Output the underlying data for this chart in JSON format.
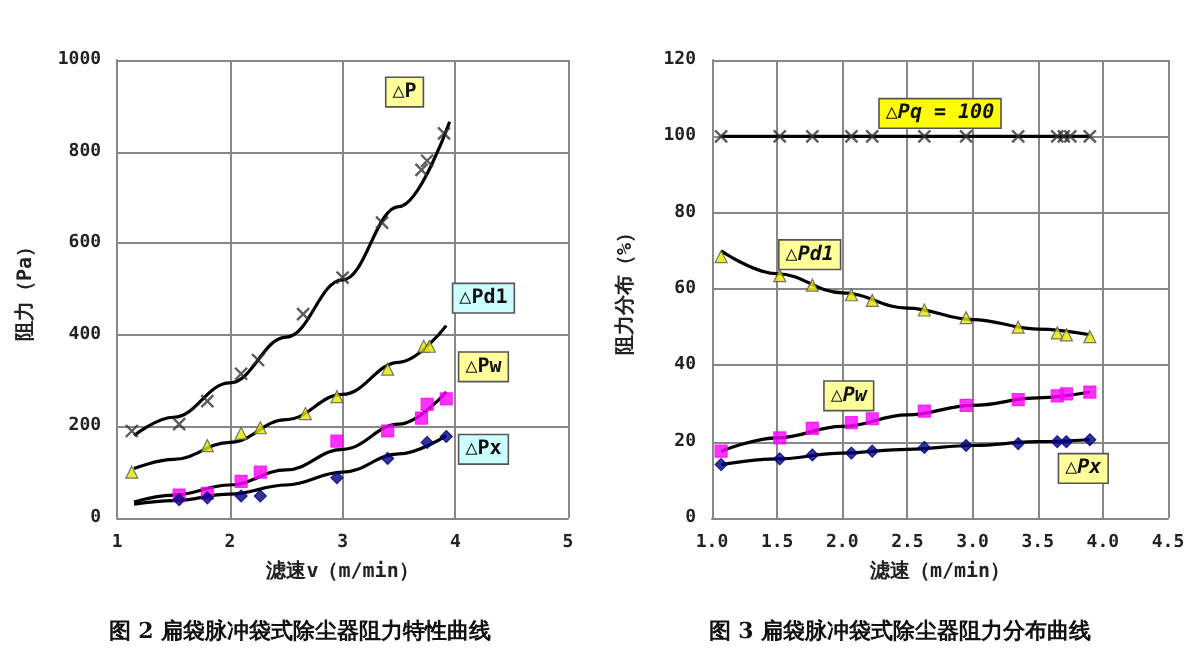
{
  "chart_data": [
    {
      "type": "scatter",
      "xlabel": "滤速v（m/min）",
      "ylabel": "阻力（Pa）",
      "xlim": [
        1,
        5
      ],
      "xticks": [
        1,
        2,
        3,
        4,
        5
      ],
      "ylim": [
        0,
        1000
      ],
      "yticks": [
        0,
        200,
        400,
        600,
        800,
        1000
      ],
      "grid": true,
      "legend": false,
      "annotations": [
        "图 2 扁袋脉冲袋式除尘器阻力特性曲线"
      ],
      "series": [
        {
          "name": "△P",
          "color": "#333333",
          "marker": "cross",
          "x": [
            1.13,
            1.55,
            1.8,
            2.1,
            2.25,
            2.65,
            3.0,
            3.35,
            3.7,
            3.75,
            3.9
          ],
          "values": [
            190,
            205,
            255,
            315,
            345,
            445,
            525,
            645,
            760,
            780,
            840
          ]
        },
        {
          "type": "line",
          "color": "#000000",
          "marker": "none",
          "x": [
            1.15,
            1.5,
            2.0,
            2.5,
            3.0,
            3.5,
            3.95
          ],
          "values": [
            180,
            220,
            295,
            395,
            520,
            680,
            865
          ]
        },
        {
          "name": "△Pd1",
          "color": "#e6e600",
          "marker": "triangle",
          "x": [
            1.13,
            1.8,
            2.1,
            2.27,
            2.67,
            2.95,
            3.4,
            3.72,
            3.77
          ],
          "values": [
            100,
            158,
            185,
            197,
            228,
            265,
            325,
            375,
            375
          ]
        },
        {
          "type": "line",
          "color": "#000000",
          "marker": "none",
          "x": [
            1.15,
            1.5,
            2.0,
            2.5,
            3.0,
            3.5,
            3.92
          ],
          "values": [
            108,
            128,
            165,
            215,
            270,
            340,
            420
          ]
        },
        {
          "name": "△Pw",
          "color": "#ff00ff",
          "marker": "square",
          "x": [
            1.55,
            1.8,
            2.1,
            2.27,
            2.95,
            3.4,
            3.7,
            3.75,
            3.92
          ],
          "values": [
            50,
            54,
            80,
            100,
            168,
            190,
            218,
            248,
            260
          ]
        },
        {
          "type": "line",
          "color": "#000000",
          "marker": "none",
          "x": [
            1.15,
            1.5,
            2.0,
            2.5,
            3.0,
            3.5,
            3.92
          ],
          "values": [
            35,
            50,
            72,
            105,
            150,
            205,
            275
          ]
        },
        {
          "name": "△Px",
          "color": "#000080",
          "marker": "diamond",
          "x": [
            1.55,
            1.8,
            2.1,
            2.27,
            2.95,
            3.4,
            3.75,
            3.92
          ],
          "values": [
            40,
            44,
            48,
            48,
            88,
            130,
            165,
            178
          ]
        },
        {
          "type": "line",
          "color": "#000000",
          "marker": "none",
          "x": [
            1.15,
            1.5,
            2.0,
            2.5,
            3.0,
            3.5,
            3.92
          ],
          "values": [
            30,
            38,
            52,
            72,
            100,
            140,
            180
          ]
        }
      ]
    },
    {
      "type": "scatter",
      "xlabel": "滤速（m/min）",
      "ylabel": "阻力分布（%）",
      "xlim": [
        1,
        4.5
      ],
      "xticks": [
        {
          "value": 1,
          "label": "1.0"
        },
        1.5,
        {
          "value": 2,
          "label": "2.0"
        },
        2.5,
        {
          "value": 3,
          "label": "3.0"
        },
        3.5,
        {
          "value": 4,
          "label": "4.0"
        },
        4.5
      ],
      "ylim": [
        0,
        120
      ],
      "yticks": [
        0,
        20,
        40,
        60,
        80,
        100,
        120
      ],
      "grid": true,
      "legend": false,
      "annotations": [
        "图 3 扁袋脉冲袋式除尘器阻力分布曲线"
      ],
      "series": [
        {
          "name": "△Pq = 100",
          "color": "#333333",
          "marker": "cross",
          "x": [
            1.07,
            1.52,
            1.77,
            2.07,
            2.23,
            2.63,
            2.95,
            3.35,
            3.65,
            3.7,
            3.75,
            3.9
          ],
          "values": [
            100,
            100,
            100,
            100,
            100,
            100,
            100,
            100,
            100,
            100,
            100,
            100
          ]
        },
        {
          "type": "line",
          "color": "#000000",
          "marker": "none",
          "x": [
            1.07,
            3.9
          ],
          "values": [
            100,
            100
          ]
        },
        {
          "name": "△Pd1",
          "color": "#e6e600",
          "marker": "triangle",
          "x": [
            1.07,
            1.52,
            1.77,
            2.07,
            2.23,
            2.63,
            2.95,
            3.35,
            3.65,
            3.72,
            3.9
          ],
          "values": [
            68.5,
            63.5,
            61,
            58.5,
            57,
            54.5,
            52.5,
            50,
            48.5,
            48,
            47.5
          ]
        },
        {
          "type": "line",
          "color": "#000000",
          "marker": "none",
          "x": [
            1.07,
            1.5,
            2.0,
            2.5,
            3.0,
            3.5,
            3.9
          ],
          "values": [
            70,
            64,
            59,
            55,
            52,
            49.5,
            48
          ]
        },
        {
          "name": "△Pw",
          "color": "#ff00ff",
          "marker": "square",
          "x": [
            1.07,
            1.52,
            1.77,
            2.07,
            2.23,
            2.63,
            2.95,
            3.35,
            3.65,
            3.72,
            3.9
          ],
          "values": [
            17.5,
            21,
            23.5,
            25,
            26,
            28,
            29.5,
            31,
            32,
            32.5,
            33
          ]
        },
        {
          "type": "line",
          "color": "#000000",
          "marker": "none",
          "x": [
            1.07,
            1.5,
            2.0,
            2.5,
            3.0,
            3.5,
            3.9
          ],
          "values": [
            17.5,
            21,
            24,
            27,
            29.5,
            31.5,
            33
          ]
        },
        {
          "name": "△Px",
          "color": "#000080",
          "marker": "diamond",
          "x": [
            1.07,
            1.52,
            1.77,
            2.07,
            2.23,
            2.63,
            2.95,
            3.35,
            3.65,
            3.72,
            3.9
          ],
          "values": [
            14,
            15.5,
            16.5,
            17,
            17.5,
            18.5,
            19,
            19.5,
            20,
            20,
            20.5
          ]
        },
        {
          "type": "line",
          "color": "#000000",
          "marker": "none",
          "x": [
            1.07,
            1.5,
            2.0,
            2.5,
            3.0,
            3.5,
            3.9
          ],
          "values": [
            14,
            15.5,
            17,
            18,
            19,
            20,
            20.5
          ]
        }
      ]
    }
  ]
}
